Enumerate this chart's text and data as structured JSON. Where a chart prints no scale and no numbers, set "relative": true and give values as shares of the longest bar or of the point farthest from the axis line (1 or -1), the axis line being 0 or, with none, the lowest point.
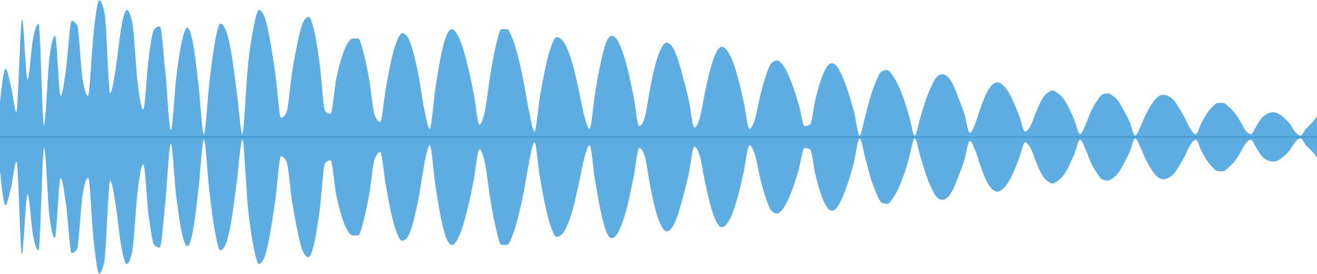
{
  "chart_data": {
    "type": "area",
    "relative": true,
    "categories": [
      null,
      null,
      null,
      null,
      null,
      null,
      null,
      null,
      null,
      null,
      null,
      null,
      null,
      null,
      null,
      null,
      null,
      null,
      null,
      null,
      null,
      null,
      null,
      null,
      null,
      null,
      null,
      null,
      null,
      null,
      null,
      null,
      null,
      null,
      null,
      null,
      null,
      null,
      null,
      null,
      null,
      null,
      null,
      null,
      null,
      null,
      null,
      null,
      null,
      null,
      null,
      null,
      null,
      null,
      null,
      null,
      null,
      null,
      null,
      null,
      null,
      null,
      null,
      null,
      null,
      null,
      null,
      null,
      null,
      null,
      null,
      null,
      null,
      null,
      null,
      null,
      null,
      null,
      null,
      null,
      null,
      null,
      null,
      null,
      null,
      null,
      null,
      null,
      null,
      null,
      null,
      null,
      null,
      null,
      null,
      null,
      null,
      null,
      null,
      null,
      null,
      null,
      null,
      null,
      null,
      null,
      null,
      null,
      null,
      null,
      null,
      null,
      null,
      null,
      null,
      null,
      null,
      null,
      null,
      null,
      null,
      null,
      null,
      null,
      null,
      null,
      null,
      null,
      null,
      null,
      null,
      null,
      null,
      null,
      null,
      null,
      null,
      null,
      null,
      null,
      null,
      null,
      null,
      null,
      null,
      null,
      null,
      null,
      null,
      null,
      null,
      null,
      null,
      null,
      null,
      null,
      null,
      null,
      null,
      null,
      null,
      null,
      null,
      null,
      null,
      null,
      null,
      null,
      null,
      null,
      null,
      null,
      null,
      null,
      null,
      null,
      null,
      null,
      null,
      null,
      null,
      null,
      null,
      null,
      null,
      null,
      null,
      null,
      null,
      null,
      null,
      null,
      null,
      null,
      null,
      null,
      null,
      null,
      null,
      null,
      null,
      null,
      null,
      null,
      null,
      null,
      null,
      null,
      null,
      null,
      null,
      null,
      null,
      null,
      null,
      null,
      null,
      null,
      null,
      null,
      null,
      null,
      null,
      null,
      null,
      null,
      null,
      null,
      null,
      null,
      null,
      null,
      null,
      null,
      null,
      null,
      null,
      null,
      null,
      null
    ],
    "series": [
      {
        "color": "#5dade2",
        "values": [
          0.25,
          0.5,
          0.37,
          0.18,
          0.86,
          0.42,
          0.72,
          0.83,
          0.08,
          0.59,
          0.74,
          0.3,
          0.5,
          0.85,
          0.82,
          0.42,
          0.3,
          0.76,
          1.0,
          0.9,
          0.32,
          0.5,
          0.8,
          0.93,
          0.84,
          0.39,
          0.2,
          0.58,
          0.79,
          0.81,
          0.48,
          0.05,
          0.44,
          0.7,
          0.8,
          0.69,
          0.39,
          0.02,
          0.4,
          0.69,
          0.83,
          0.78,
          0.61,
          0.32,
          0.02,
          0.52,
          0.8,
          0.93,
          0.88,
          0.71,
          0.45,
          0.14,
          0.18,
          0.47,
          0.69,
          0.84,
          0.88,
          0.78,
          0.54,
          0.19,
          0.17,
          0.42,
          0.58,
          0.68,
          0.72,
          0.72,
          0.61,
          0.42,
          0.16,
          0.11,
          0.35,
          0.56,
          0.7,
          0.76,
          0.73,
          0.62,
          0.44,
          0.2,
          0.06,
          0.35,
          0.59,
          0.74,
          0.79,
          0.75,
          0.65,
          0.5,
          0.31,
          0.09,
          0.19,
          0.46,
          0.67,
          0.79,
          0.79,
          0.72,
          0.59,
          0.41,
          0.19,
          0.04,
          0.3,
          0.51,
          0.66,
          0.73,
          0.71,
          0.64,
          0.52,
          0.35,
          0.16,
          0.06,
          0.32,
          0.54,
          0.69,
          0.74,
          0.71,
          0.62,
          0.48,
          0.29,
          0.08,
          0.14,
          0.36,
          0.54,
          0.65,
          0.69,
          0.66,
          0.57,
          0.43,
          0.27,
          0.07,
          0.14,
          0.34,
          0.51,
          0.62,
          0.66,
          0.63,
          0.55,
          0.42,
          0.25,
          0.06,
          0.13,
          0.31,
          0.45,
          0.54,
          0.56,
          0.53,
          0.46,
          0.36,
          0.23,
          0.08,
          0.09,
          0.28,
          0.42,
          0.51,
          0.54,
          0.51,
          0.43,
          0.32,
          0.18,
          0.01,
          0.15,
          0.3,
          0.41,
          0.48,
          0.49,
          0.45,
          0.38,
          0.28,
          0.15,
          0.01,
          0.14,
          0.27,
          0.37,
          0.44,
          0.46,
          0.44,
          0.38,
          0.28,
          0.17,
          0.03,
          0.1,
          0.22,
          0.32,
          0.38,
          0.4,
          0.38,
          0.33,
          0.25,
          0.15,
          0.04,
          0.08,
          0.18,
          0.27,
          0.32,
          0.34,
          0.32,
          0.28,
          0.21,
          0.12,
          0.02,
          0.09,
          0.19,
          0.26,
          0.31,
          0.32,
          0.3,
          0.26,
          0.19,
          0.11,
          0.01,
          0.08,
          0.17,
          0.24,
          0.29,
          0.31,
          0.3,
          0.27,
          0.21,
          0.14,
          0.06,
          0.02,
          0.1,
          0.17,
          0.22,
          0.25,
          0.25,
          0.22,
          0.18,
          0.12,
          0.05,
          0.02,
          0.08,
          0.14,
          0.17,
          0.18,
          0.17,
          0.14,
          0.1,
          0.04,
          0.01,
          0.06,
          0.1,
          0.15
        ]
      },
      {
        "color": "#5dade2",
        "values": [
          -0.25,
          -0.5,
          -0.37,
          -0.18,
          -0.86,
          -0.42,
          -0.72,
          -0.83,
          -0.08,
          -0.59,
          -0.74,
          -0.3,
          -0.5,
          -0.85,
          -0.82,
          -0.42,
          -0.3,
          -0.76,
          -1.0,
          -0.9,
          -0.32,
          -0.5,
          -0.8,
          -0.93,
          -0.84,
          -0.39,
          -0.2,
          -0.58,
          -0.79,
          -0.81,
          -0.48,
          -0.05,
          -0.44,
          -0.7,
          -0.8,
          -0.69,
          -0.39,
          -0.02,
          -0.4,
          -0.69,
          -0.83,
          -0.78,
          -0.61,
          -0.32,
          -0.02,
          -0.52,
          -0.8,
          -0.93,
          -0.88,
          -0.71,
          -0.45,
          -0.14,
          -0.18,
          -0.47,
          -0.69,
          -0.84,
          -0.88,
          -0.78,
          -0.54,
          -0.19,
          -0.17,
          -0.42,
          -0.58,
          -0.68,
          -0.72,
          -0.72,
          -0.61,
          -0.42,
          -0.16,
          -0.11,
          -0.35,
          -0.56,
          -0.7,
          -0.76,
          -0.73,
          -0.62,
          -0.44,
          -0.2,
          -0.06,
          -0.35,
          -0.59,
          -0.74,
          -0.79,
          -0.75,
          -0.65,
          -0.5,
          -0.31,
          -0.09,
          -0.19,
          -0.46,
          -0.67,
          -0.79,
          -0.79,
          -0.72,
          -0.59,
          -0.41,
          -0.19,
          -0.04,
          -0.3,
          -0.51,
          -0.66,
          -0.73,
          -0.71,
          -0.64,
          -0.52,
          -0.35,
          -0.16,
          -0.06,
          -0.32,
          -0.54,
          -0.69,
          -0.74,
          -0.71,
          -0.62,
          -0.48,
          -0.29,
          -0.08,
          -0.14,
          -0.36,
          -0.54,
          -0.65,
          -0.69,
          -0.66,
          -0.57,
          -0.43,
          -0.27,
          -0.07,
          -0.14,
          -0.34,
          -0.51,
          -0.62,
          -0.66,
          -0.63,
          -0.55,
          -0.42,
          -0.25,
          -0.06,
          -0.13,
          -0.31,
          -0.45,
          -0.54,
          -0.56,
          -0.53,
          -0.46,
          -0.36,
          -0.23,
          -0.08,
          -0.09,
          -0.28,
          -0.42,
          -0.51,
          -0.54,
          -0.51,
          -0.43,
          -0.32,
          -0.18,
          -0.01,
          -0.15,
          -0.3,
          -0.41,
          -0.48,
          -0.49,
          -0.45,
          -0.38,
          -0.28,
          -0.15,
          -0.01,
          -0.14,
          -0.27,
          -0.37,
          -0.44,
          -0.46,
          -0.44,
          -0.38,
          -0.28,
          -0.17,
          -0.03,
          -0.1,
          -0.22,
          -0.32,
          -0.38,
          -0.4,
          -0.38,
          -0.33,
          -0.25,
          -0.15,
          -0.04,
          -0.08,
          -0.18,
          -0.27,
          -0.32,
          -0.34,
          -0.32,
          -0.28,
          -0.21,
          -0.12,
          -0.02,
          -0.09,
          -0.19,
          -0.26,
          -0.31,
          -0.32,
          -0.3,
          -0.26,
          -0.19,
          -0.11,
          -0.01,
          -0.08,
          -0.17,
          -0.24,
          -0.29,
          -0.31,
          -0.3,
          -0.27,
          -0.21,
          -0.14,
          -0.06,
          -0.02,
          -0.1,
          -0.17,
          -0.22,
          -0.25,
          -0.25,
          -0.22,
          -0.18,
          -0.12,
          -0.05,
          -0.02,
          -0.08,
          -0.14,
          -0.17,
          -0.18,
          -0.17,
          -0.14,
          -0.1,
          -0.04,
          -0.01,
          -0.06,
          -0.1,
          -0.15
        ]
      }
    ],
    "ref_lines": [
      {
        "axis": "y",
        "value": 0,
        "color": "#2e86c1"
      }
    ]
  }
}
